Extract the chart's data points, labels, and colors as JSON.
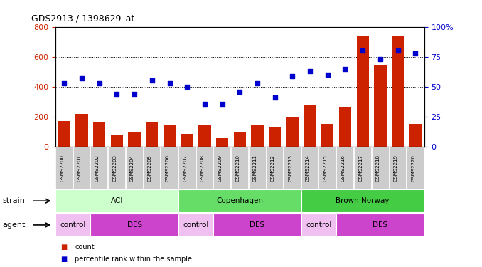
{
  "title": "GDS2913 / 1398629_at",
  "samples": [
    "GSM92200",
    "GSM92201",
    "GSM92202",
    "GSM92203",
    "GSM92204",
    "GSM92205",
    "GSM92206",
    "GSM92207",
    "GSM92208",
    "GSM92209",
    "GSM92210",
    "GSM92211",
    "GSM92212",
    "GSM92213",
    "GSM92214",
    "GSM92215",
    "GSM92216",
    "GSM92217",
    "GSM92218",
    "GSM92219",
    "GSM92220"
  ],
  "counts": [
    170,
    220,
    165,
    82,
    100,
    165,
    145,
    85,
    150,
    60,
    100,
    145,
    130,
    200,
    280,
    155,
    265,
    740,
    545,
    740,
    155
  ],
  "percentiles": [
    53,
    57,
    53,
    44,
    44,
    55,
    53,
    50,
    36,
    36,
    46,
    53,
    41,
    59,
    63,
    60,
    65,
    80,
    73,
    80,
    78
  ],
  "ylim_left": [
    0,
    800
  ],
  "ylim_right": [
    0,
    100
  ],
  "yticks_left": [
    0,
    200,
    400,
    600,
    800
  ],
  "yticks_right": [
    0,
    25,
    50,
    75,
    100
  ],
  "bar_color": "#cc2200",
  "scatter_color": "#0000cc",
  "strain_groups": [
    {
      "label": "ACI",
      "start": 0,
      "end": 6,
      "color": "#ccffcc"
    },
    {
      "label": "Copenhagen",
      "start": 7,
      "end": 13,
      "color": "#66dd66"
    },
    {
      "label": "Brown Norway",
      "start": 14,
      "end": 20,
      "color": "#44cc44"
    }
  ],
  "agent_groups": [
    {
      "label": "control",
      "start": 0,
      "end": 1,
      "color": "#f0c0f0"
    },
    {
      "label": "DES",
      "start": 2,
      "end": 6,
      "color": "#cc44cc"
    },
    {
      "label": "control",
      "start": 7,
      "end": 8,
      "color": "#f0c0f0"
    },
    {
      "label": "DES",
      "start": 9,
      "end": 13,
      "color": "#cc44cc"
    },
    {
      "label": "control",
      "start": 14,
      "end": 15,
      "color": "#f0c0f0"
    },
    {
      "label": "DES",
      "start": 16,
      "end": 20,
      "color": "#cc44cc"
    }
  ],
  "strain_label": "strain",
  "agent_label": "agent",
  "legend_count_label": "count",
  "legend_pct_label": "percentile rank within the sample",
  "left_axis_color": "#cc2200",
  "right_axis_color": "#0000cc",
  "xticklabel_bg": "#cccccc"
}
